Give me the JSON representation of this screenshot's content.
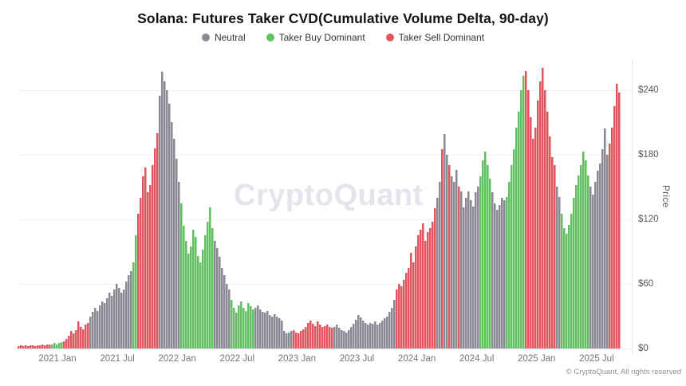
{
  "title": "Solana: Futures Taker CVD(Cumulative Volume Delta, 90-day)",
  "legend": {
    "items": [
      {
        "label": "Neutral",
        "color": "#8a8a95"
      },
      {
        "label": "Taker Buy Dominant",
        "color": "#62c063"
      },
      {
        "label": "Taker Sell Dominant",
        "color": "#e1575f"
      }
    ]
  },
  "watermark": "CryptoQuant",
  "footer": "© CryptoQuant. All rights reserved",
  "y_axis": {
    "title": "Price",
    "ticks": [
      {
        "label": "$0",
        "value": 0
      },
      {
        "label": "$60",
        "value": 60
      },
      {
        "label": "$120",
        "value": 120
      },
      {
        "label": "$180",
        "value": 180
      },
      {
        "label": "$240",
        "value": 240
      }
    ]
  },
  "x_axis": {
    "labels": [
      "2021 Jan",
      "2021 Jul",
      "2022 Jan",
      "2022 Jul",
      "2023 Jan",
      "2023 Jul",
      "2024 Jan",
      "2024 Jul",
      "2025 Jan",
      "2025 Jul"
    ]
  },
  "chart_data": {
    "type": "bar",
    "title": "Solana: Futures Taker CVD(Cumulative Volume Delta, 90-day)",
    "ylabel": "Price",
    "y_unit": "USD",
    "ylim": [
      0,
      268
    ],
    "y_ticks": [
      0,
      60,
      120,
      180,
      240
    ],
    "x_tick_labels": [
      "2021 Jan",
      "2021 Jul",
      "2022 Jan",
      "2022 Jul",
      "2023 Jan",
      "2023 Jul",
      "2024 Jan",
      "2024 Jul",
      "2025 Jan",
      "2025 Jul"
    ],
    "x_range": "approx 2020-09 to 2025-09, daily bars downsampled to 252 points",
    "grid": "horizontal, faint",
    "legend_position": "top-center",
    "color_legend": {
      "n": "Neutral",
      "g": "Taker Buy Dominant",
      "r": "Taker Sell Dominant"
    },
    "colors": {
      "n": "#8a8a95",
      "g": "#62c063",
      "r": "#e1575f"
    },
    "point_colors": "rrrrrrrrrrrrrrgggggrrrrrrrrrrrnnnnnnnnnnnnnnnnnnggrrrrrrrrrnnnnnnnnnggggggggggggggnnnnnnnggggggggggnnnnnnnnnnnnnnnnrrrrrrrrrrrrrrrrrnnnnnnnnnnnnnnnnnnnnnnnnnnrrrrrrrrrrrrrrrrrnnrnnrnnnrnnnnnnnngggggnnnnnnggggggggrrrrrrrrrrrrrnnggggggggggggnnnnnnnnrrrrr",
    "values": [
      2,
      3,
      2,
      3,
      2,
      3,
      3,
      2,
      3,
      3,
      4,
      3,
      4,
      4,
      4,
      5,
      4,
      5,
      6,
      7,
      9,
      12,
      16,
      14,
      17,
      25,
      20,
      18,
      22,
      24,
      30,
      34,
      38,
      35,
      40,
      44,
      42,
      47,
      52,
      49,
      55,
      60,
      56,
      52,
      55,
      62,
      68,
      72,
      80,
      105,
      125,
      140,
      160,
      168,
      145,
      152,
      170,
      186,
      200,
      235,
      257,
      248,
      240,
      227,
      210,
      195,
      176,
      155,
      135,
      114,
      100,
      88,
      95,
      110,
      104,
      86,
      80,
      92,
      105,
      118,
      131,
      112,
      100,
      93,
      85,
      75,
      68,
      60,
      55,
      45,
      38,
      33,
      40,
      44,
      38,
      35,
      42,
      39,
      36,
      38,
      40,
      36,
      34,
      33,
      35,
      31,
      30,
      32,
      30,
      28,
      26,
      16,
      14,
      15,
      16,
      17,
      15,
      14,
      16,
      18,
      20,
      24,
      26,
      23,
      21,
      25,
      22,
      20,
      21,
      22,
      20,
      19,
      20,
      22,
      19,
      17,
      16,
      15,
      17,
      20,
      23,
      27,
      31,
      29,
      26,
      24,
      22,
      24,
      23,
      25,
      22,
      24,
      26,
      28,
      30,
      34,
      38,
      45,
      55,
      60,
      58,
      64,
      70,
      75,
      89,
      80,
      95,
      105,
      110,
      116,
      100,
      108,
      112,
      118,
      130,
      140,
      155,
      185,
      199,
      180,
      170,
      160,
      155,
      166,
      150,
      146,
      131,
      140,
      146,
      138,
      132,
      145,
      150,
      160,
      175,
      183,
      170,
      158,
      145,
      135,
      129,
      133,
      140,
      138,
      141,
      155,
      170,
      185,
      205,
      220,
      240,
      253,
      258,
      240,
      215,
      195,
      205,
      230,
      248,
      261,
      240,
      220,
      197,
      178,
      170,
      150,
      141,
      125,
      112,
      107,
      115,
      125,
      140,
      152,
      161,
      170,
      183,
      175,
      161,
      150,
      143,
      155,
      165,
      172,
      185,
      204,
      180,
      190,
      205,
      225,
      246,
      238
    ]
  }
}
